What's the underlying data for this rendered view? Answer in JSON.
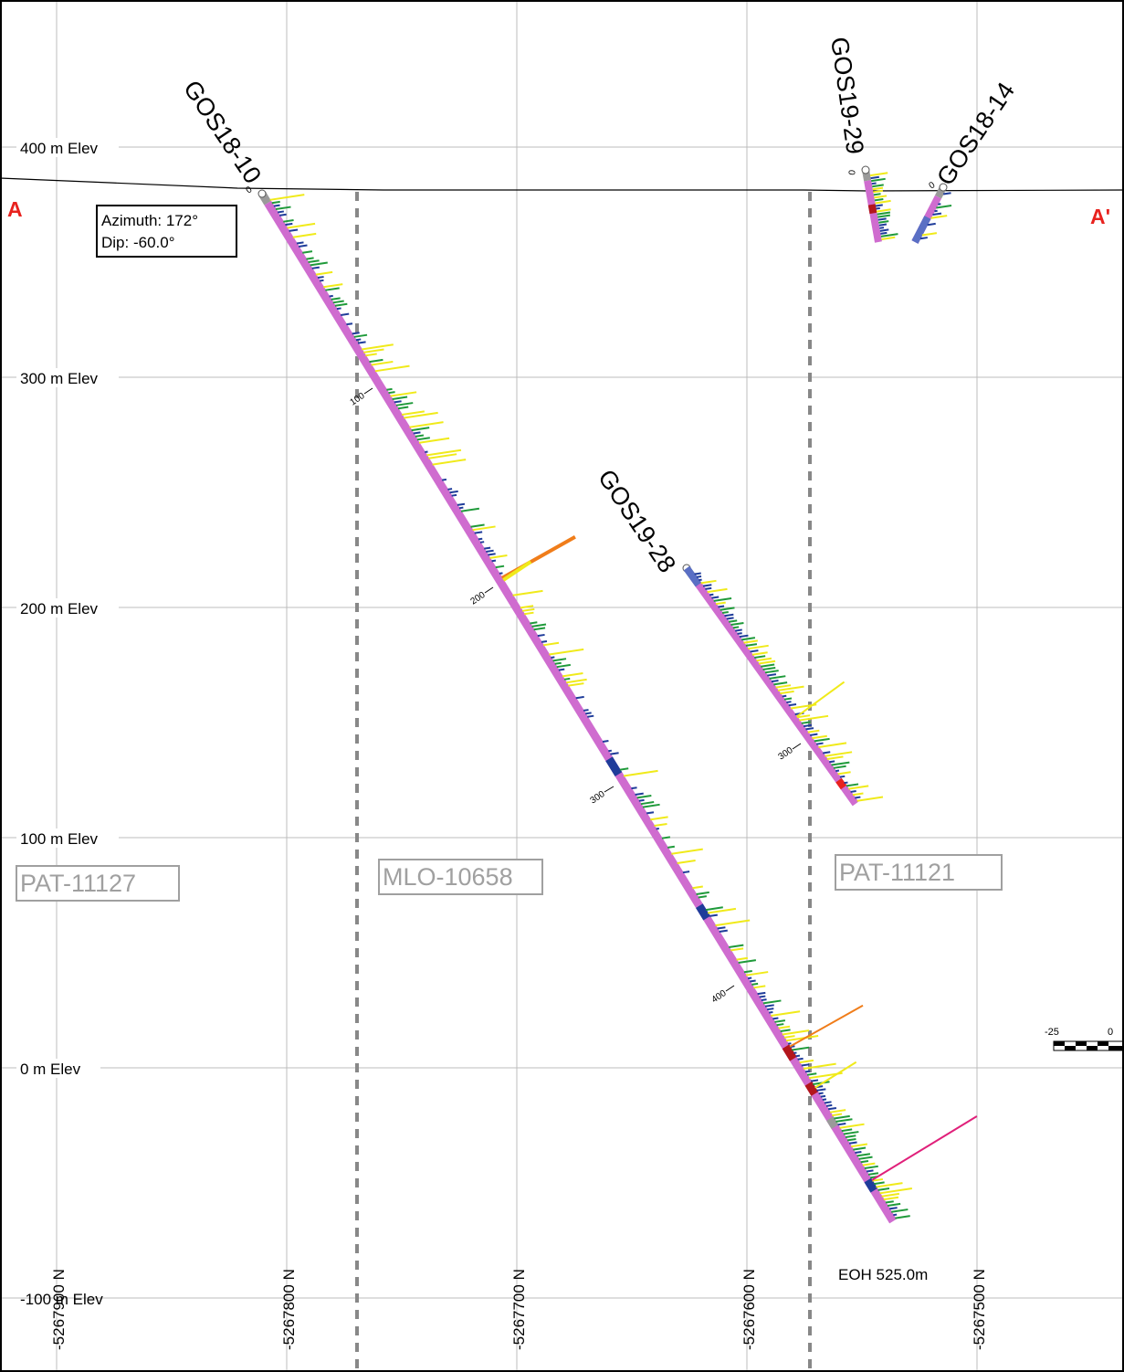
{
  "section": {
    "start_label": "A",
    "end_label": "A'",
    "label_color": "#e8221e",
    "background": "#ffffff",
    "grid_color": "#bcbcbc",
    "frame_color": "#000000"
  },
  "elevation_labels": [
    "400 m Elev",
    "300 m Elev",
    "200 m Elev",
    "100 m Elev",
    "0 m Elev",
    "-100 m Elev"
  ],
  "northing_labels": [
    "-5267900 N",
    "-5267800 N",
    "-5267700 N",
    "-5267600 N",
    "-5267500 N"
  ],
  "drillholes": [
    {
      "name": "GOS18-10",
      "azimuth_label": "Azimuth: 172°",
      "dip_label": "Dip: -60.0°",
      "eoh_label": "EOH 525.0m",
      "depth_ticks": [
        "0",
        "100",
        "200",
        "300",
        "400"
      ]
    },
    {
      "name": "GOS19-28",
      "depth_ticks": [
        "300"
      ]
    },
    {
      "name": "GOS19-29",
      "depth_ticks": [
        "0"
      ]
    },
    {
      "name": "GOS18-14",
      "depth_ticks": [
        "0"
      ]
    }
  ],
  "claims": [
    {
      "label": "PAT-11127"
    },
    {
      "label": "MLO-10658"
    },
    {
      "label": "PAT-11121"
    }
  ],
  "claim_boundary_color": "#888888",
  "claim_label_color": "#a0a0a0",
  "scale_bar": {
    "labels": [
      "-25",
      "0"
    ]
  },
  "colors": {
    "trace": "#cf6ccf",
    "trace_alt": "#5a6fc4",
    "trace_red": "#b3161c",
    "bar_blue": "#1f3c9a",
    "bar_green": "#1f9a3a",
    "bar_yellow": "#f0ea1a",
    "bar_orange": "#f07d1a",
    "bar_magenta": "#e0207a",
    "collar_gray": "#9a9a9a"
  }
}
